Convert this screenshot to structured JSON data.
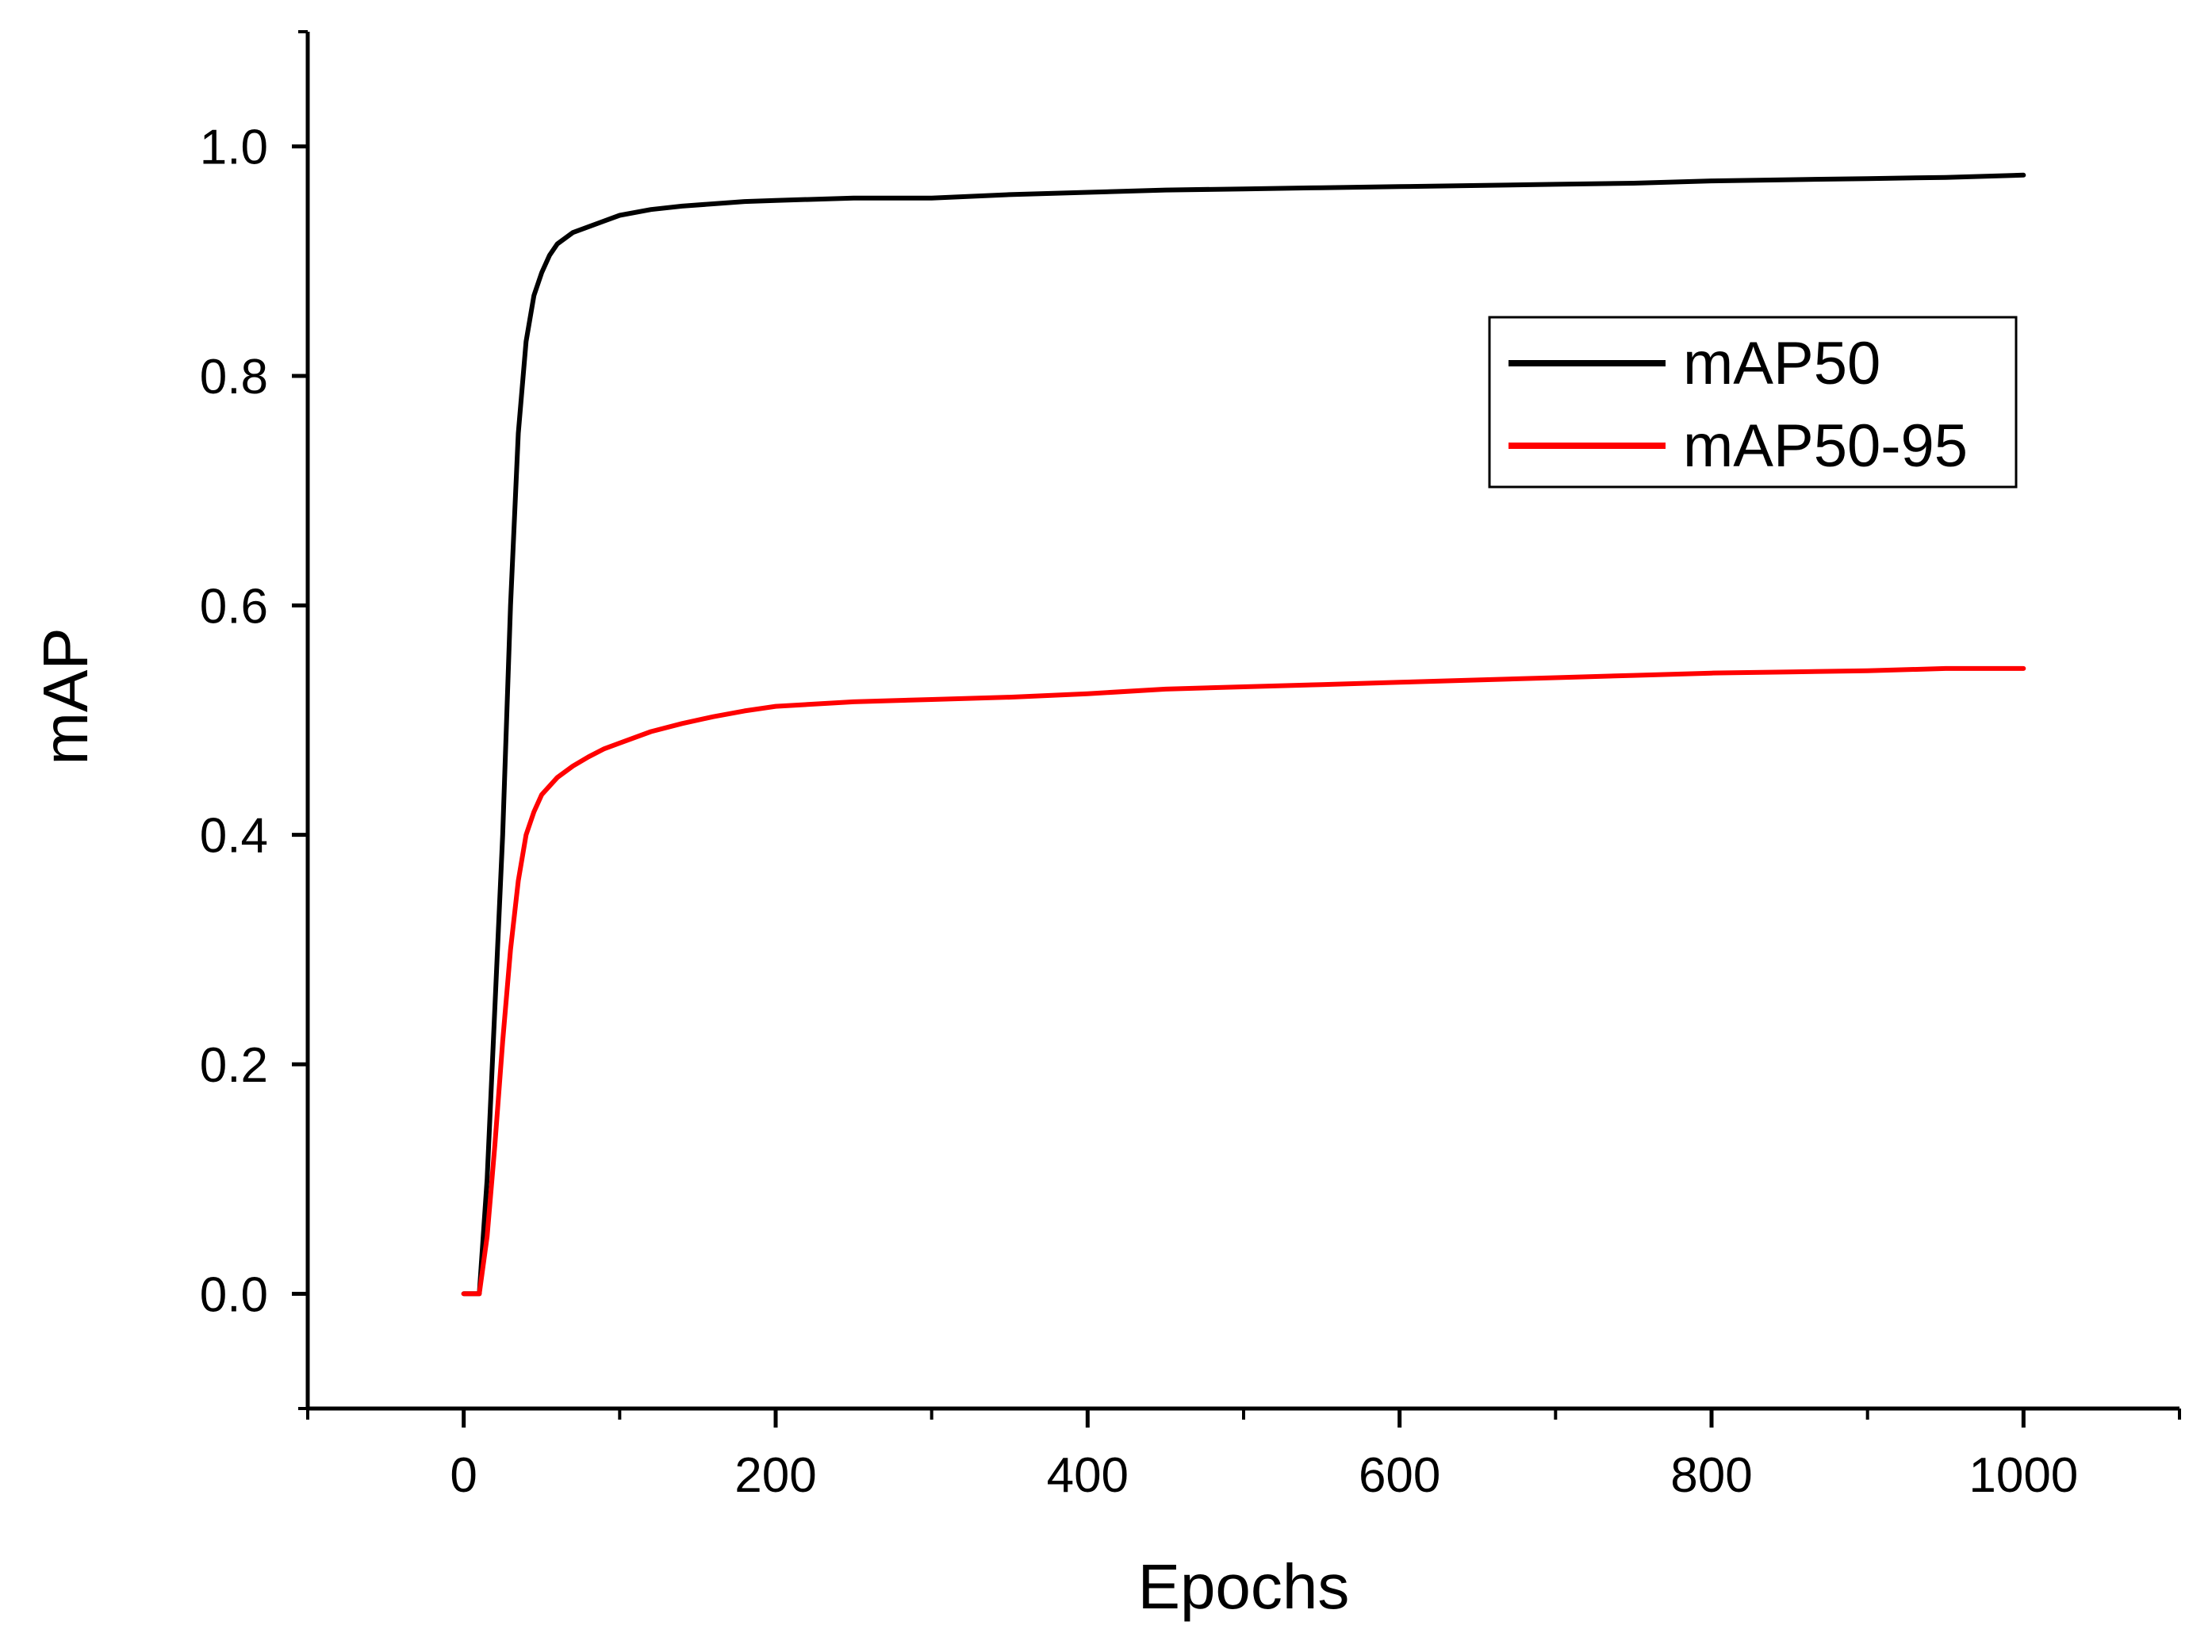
{
  "chart_data": {
    "type": "line",
    "title": "",
    "xlabel": "Epochs",
    "ylabel": "mAP",
    "xlim": [
      -100,
      1100
    ],
    "ylim": [
      -0.1,
      1.1
    ],
    "x_ticks": [
      0,
      200,
      400,
      600,
      800,
      1000
    ],
    "x_tick_labels": [
      "0",
      "200",
      "400",
      "600",
      "800",
      "1000"
    ],
    "y_ticks": [
      0.0,
      0.2,
      0.4,
      0.6,
      0.8,
      1.0
    ],
    "y_tick_labels": [
      "0.0",
      "0.2",
      "0.4",
      "0.6",
      "0.8",
      "1.0"
    ],
    "grid": false,
    "legend_position": "right, upper-middle",
    "series": [
      {
        "name": "mAP50",
        "color": "#000000",
        "x": [
          0,
          10,
          15,
          20,
          25,
          30,
          35,
          40,
          45,
          50,
          55,
          60,
          70,
          80,
          90,
          100,
          120,
          140,
          160,
          180,
          200,
          250,
          300,
          350,
          400,
          450,
          500,
          550,
          600,
          650,
          700,
          750,
          800,
          850,
          900,
          950,
          1000
        ],
        "y": [
          0.0,
          0.0,
          0.1,
          0.25,
          0.4,
          0.6,
          0.75,
          0.83,
          0.87,
          0.89,
          0.905,
          0.915,
          0.925,
          0.93,
          0.935,
          0.94,
          0.945,
          0.948,
          0.95,
          0.952,
          0.953,
          0.955,
          0.955,
          0.958,
          0.96,
          0.962,
          0.963,
          0.964,
          0.965,
          0.966,
          0.967,
          0.968,
          0.97,
          0.971,
          0.972,
          0.973,
          0.975
        ]
      },
      {
        "name": "mAP50-95",
        "color": "#ff0000",
        "x": [
          0,
          10,
          15,
          20,
          25,
          30,
          35,
          40,
          45,
          50,
          60,
          70,
          80,
          90,
          100,
          120,
          140,
          160,
          180,
          200,
          250,
          300,
          350,
          400,
          450,
          500,
          550,
          600,
          650,
          700,
          750,
          800,
          850,
          900,
          950,
          1000
        ],
        "y": [
          0.0,
          0.0,
          0.05,
          0.13,
          0.22,
          0.3,
          0.36,
          0.4,
          0.42,
          0.435,
          0.45,
          0.46,
          0.468,
          0.475,
          0.48,
          0.49,
          0.497,
          0.503,
          0.508,
          0.512,
          0.516,
          0.518,
          0.52,
          0.523,
          0.527,
          0.529,
          0.531,
          0.533,
          0.535,
          0.537,
          0.539,
          0.541,
          0.542,
          0.543,
          0.545,
          0.545
        ]
      }
    ]
  }
}
